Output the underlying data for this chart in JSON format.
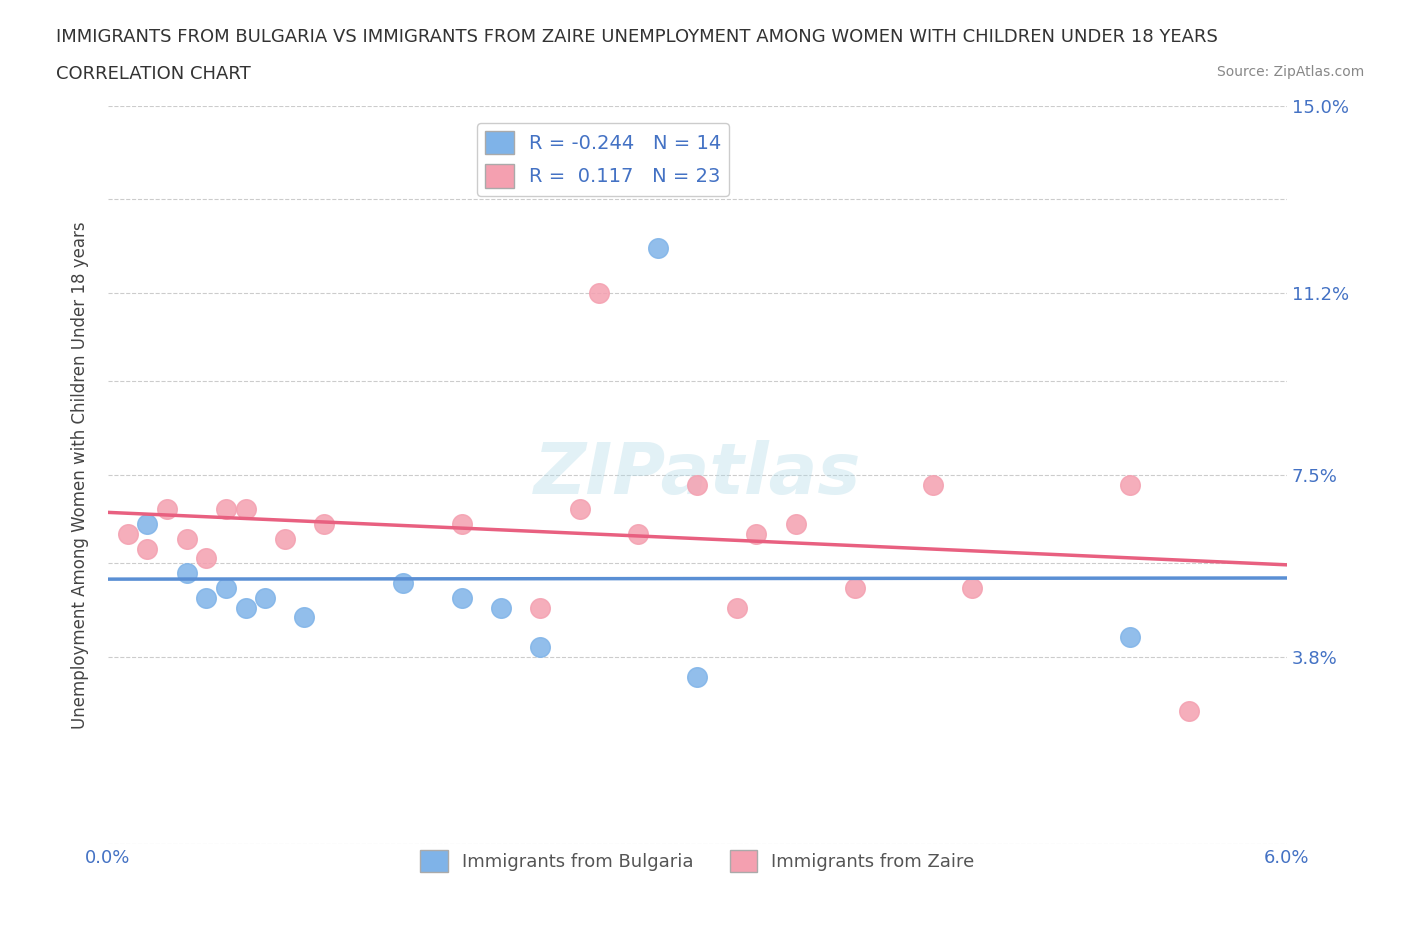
{
  "title_line1": "IMMIGRANTS FROM BULGARIA VS IMMIGRANTS FROM ZAIRE UNEMPLOYMENT AMONG WOMEN WITH CHILDREN UNDER 18 YEARS",
  "title_line2": "CORRELATION CHART",
  "source": "Source: ZipAtlas.com",
  "ylabel": "Unemployment Among Women with Children Under 18 years",
  "legend_label1": "Immigrants from Bulgaria",
  "legend_label2": "Immigrants from Zaire",
  "r1": "-0.244",
  "n1": "14",
  "r2": "0.117",
  "n2": "23",
  "xlim": [
    0.0,
    0.06
  ],
  "ylim": [
    0.0,
    0.15
  ],
  "ytick_values": [
    0.0,
    0.038,
    0.057,
    0.075,
    0.094,
    0.112,
    0.131,
    0.15
  ],
  "ytick_labels_right": [
    "",
    "3.8%",
    "",
    "7.5%",
    "",
    "11.2%",
    "",
    "15.0%"
  ],
  "xtick_values": [
    0.0,
    0.012,
    0.024,
    0.036,
    0.048,
    0.06
  ],
  "xtick_labels": [
    "0.0%",
    "",
    "",
    "",
    "",
    "6.0%"
  ],
  "color_blue": "#7fb3e8",
  "color_pink": "#f4a0b0",
  "line_color_blue": "#5a8fd4",
  "line_color_pink": "#e86080",
  "grid_color": "#cccccc",
  "bg_color": "#ffffff",
  "bulgaria_x": [
    0.002,
    0.004,
    0.005,
    0.006,
    0.007,
    0.008,
    0.01,
    0.015,
    0.018,
    0.02,
    0.022,
    0.028,
    0.03,
    0.052
  ],
  "bulgaria_y": [
    0.065,
    0.055,
    0.05,
    0.052,
    0.048,
    0.05,
    0.046,
    0.053,
    0.05,
    0.048,
    0.04,
    0.121,
    0.034,
    0.042
  ],
  "zaire_x": [
    0.001,
    0.002,
    0.003,
    0.004,
    0.005,
    0.006,
    0.007,
    0.009,
    0.011,
    0.018,
    0.022,
    0.024,
    0.025,
    0.027,
    0.03,
    0.032,
    0.033,
    0.035,
    0.038,
    0.042,
    0.044,
    0.052,
    0.055
  ],
  "zaire_y": [
    0.063,
    0.06,
    0.068,
    0.062,
    0.058,
    0.068,
    0.068,
    0.062,
    0.065,
    0.065,
    0.048,
    0.068,
    0.112,
    0.063,
    0.073,
    0.048,
    0.063,
    0.065,
    0.052,
    0.073,
    0.052,
    0.073,
    0.027
  ]
}
